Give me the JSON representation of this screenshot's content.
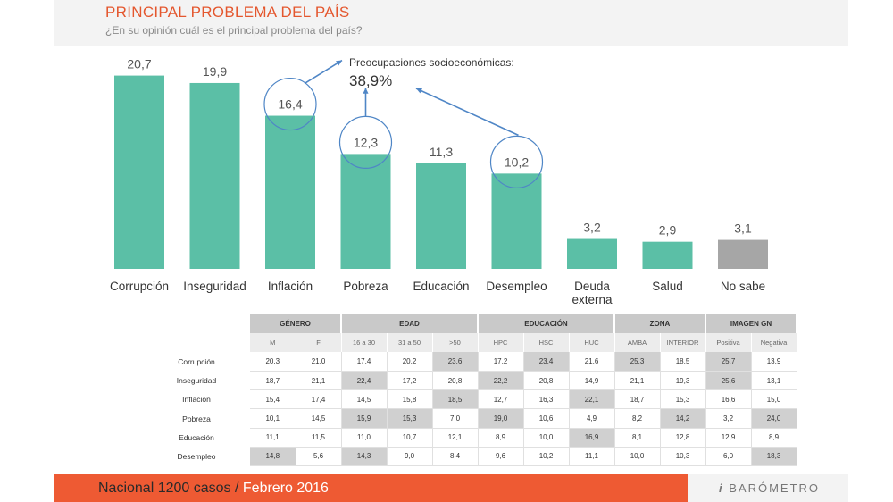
{
  "header": {
    "title": "PRINCIPAL PROBLEMA DEL PAÍS",
    "subtitle": "¿En su opinión cuál es el principal problema del país?"
  },
  "annotation": {
    "label": "Preocupaciones socioeconómicas:",
    "value": "38,9%"
  },
  "colors": {
    "bar": "#5bbfa6",
    "bar_gray": "#a6a6a6",
    "accent": "#ee5a33",
    "arrow": "#4f86c6"
  },
  "chart_data": {
    "type": "bar",
    "categories": [
      "Corrupción",
      "Inseguridad",
      "Inflación",
      "Pobreza",
      "Educación",
      "Desempleo",
      "Deuda externa",
      "Salud",
      "No sabe"
    ],
    "values": [
      20.7,
      19.9,
      16.4,
      12.3,
      11.3,
      10.2,
      3.2,
      2.9,
      3.1
    ],
    "value_labels": [
      "20,7",
      "19,9",
      "16,4",
      "12,3",
      "11,3",
      "10,2",
      "3,2",
      "2,9",
      "3,1"
    ],
    "circled": [
      "Inflación",
      "Pobreza",
      "Desempleo"
    ],
    "title": "PRINCIPAL PROBLEMA DEL PAÍS",
    "xlabel": "",
    "ylabel": "",
    "ylim": [
      0,
      22
    ],
    "grid": false
  },
  "table": {
    "groups": [
      {
        "label": "GÉNERO",
        "span": 2
      },
      {
        "label": "EDAD",
        "span": 3
      },
      {
        "label": "EDUCACIÓN",
        "span": 3
      },
      {
        "label": "ZONA",
        "span": 2
      },
      {
        "label": "IMAGEN GN",
        "span": 2
      }
    ],
    "subheaders": [
      "M",
      "F",
      "16 a 30",
      "31 a 50",
      ">50",
      "HPC",
      "HSC",
      "HUC",
      "AMBA",
      "INTERIOR",
      "Positiva",
      "Negativa"
    ],
    "rows": [
      {
        "label": "Corrupción",
        "values": [
          "20,3",
          "21,0",
          "17,4",
          "20,2",
          "23,6",
          "17,2",
          "23,4",
          "21,6",
          "25,3",
          "18,5",
          "25,7",
          "13,9"
        ],
        "highlight": [
          4,
          6,
          8,
          10
        ]
      },
      {
        "label": "Inseguridad",
        "values": [
          "18,7",
          "21,1",
          "22,4",
          "17,2",
          "20,8",
          "22,2",
          "20,8",
          "14,9",
          "21,1",
          "19,3",
          "25,6",
          "13,1"
        ],
        "highlight": [
          2,
          5,
          10
        ]
      },
      {
        "label": "Inflación",
        "values": [
          "15,4",
          "17,4",
          "14,5",
          "15,8",
          "18,5",
          "12,7",
          "16,3",
          "22,1",
          "18,7",
          "15,3",
          "16,6",
          "15,0"
        ],
        "highlight": [
          4,
          7
        ]
      },
      {
        "label": "Pobreza",
        "values": [
          "10,1",
          "14,5",
          "15,9",
          "15,3",
          "7,0",
          "19,0",
          "10,6",
          "4,9",
          "8,2",
          "14,2",
          "3,2",
          "24,0"
        ],
        "highlight": [
          2,
          3,
          5,
          9,
          11
        ]
      },
      {
        "label": "Educación",
        "values": [
          "11,1",
          "11,5",
          "11,0",
          "10,7",
          "12,1",
          "8,9",
          "10,0",
          "16,9",
          "8,1",
          "12,8",
          "12,9",
          "8,9"
        ],
        "highlight": [
          7
        ]
      },
      {
        "label": "Desempleo",
        "values": [
          "14,8",
          "5,6",
          "14,3",
          "9,0",
          "8,4",
          "9,6",
          "10,2",
          "11,1",
          "10,0",
          "10,3",
          "6,0",
          "18,3"
        ],
        "highlight": [
          0,
          2,
          11
        ]
      }
    ]
  },
  "footer": {
    "sample": "Nacional 1200 casos /",
    "date": "Febrero 2016",
    "brand": "BARÓMETRO",
    "brand_mark": "i"
  }
}
